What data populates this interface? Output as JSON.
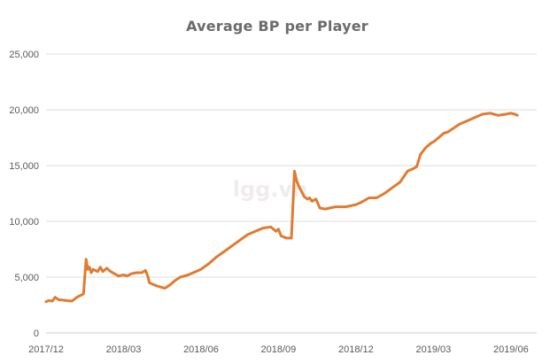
{
  "chart_data": {
    "type": "line",
    "title": "Average BP per Player",
    "xlabel": "",
    "ylabel": "",
    "ylim": [
      0,
      25000
    ],
    "yticks": [
      0,
      5000,
      10000,
      15000,
      20000,
      25000
    ],
    "ytick_labels": [
      "0",
      "5,000",
      "10,000",
      "15,000",
      "20,000",
      "25,000"
    ],
    "xlim": [
      0,
      19
    ],
    "xticks": [
      0,
      3,
      6,
      9,
      12,
      15,
      18
    ],
    "xtick_labels": [
      "2017/12",
      "2018/03",
      "2018/06",
      "2018/09",
      "2018/12",
      "2019/03",
      "2019/06"
    ],
    "grid": true,
    "watermark": "lgg.vn",
    "series": [
      {
        "name": "Average BP per Player",
        "color": "#e07b30",
        "x": [
          0,
          0.1,
          0.25,
          0.35,
          0.5,
          0.6,
          0.8,
          1.0,
          1.2,
          1.45,
          1.55,
          1.62,
          1.68,
          1.75,
          1.82,
          1.9,
          2.0,
          2.1,
          2.2,
          2.35,
          2.5,
          2.65,
          2.8,
          3.0,
          3.15,
          3.3,
          3.5,
          3.7,
          3.85,
          3.95,
          4.0,
          4.1,
          4.3,
          4.6,
          4.8,
          5.0,
          5.2,
          5.5,
          5.8,
          6.0,
          6.3,
          6.6,
          6.9,
          7.2,
          7.5,
          7.8,
          8.1,
          8.4,
          8.7,
          8.9,
          9.0,
          9.1,
          9.3,
          9.5,
          9.62,
          9.72,
          9.82,
          10.0,
          10.12,
          10.2,
          10.3,
          10.45,
          10.6,
          10.8,
          11.0,
          11.2,
          11.4,
          11.6,
          11.8,
          12.0,
          12.2,
          12.5,
          12.8,
          13.1,
          13.4,
          13.7,
          14.0,
          14.2,
          14.35,
          14.5,
          14.7,
          14.9,
          15.05,
          15.2,
          15.3,
          15.4,
          15.55,
          15.75,
          16.0,
          16.3,
          16.6,
          16.9,
          17.2,
          17.5,
          17.8,
          18.0,
          18.15,
          18.25
        ],
        "values": [
          2800,
          2900,
          2850,
          3200,
          2950,
          2950,
          2900,
          2850,
          3200,
          3500,
          6600,
          5700,
          5900,
          5400,
          5700,
          5600,
          5500,
          5900,
          5500,
          5800,
          5500,
          5300,
          5100,
          5200,
          5100,
          5300,
          5400,
          5400,
          5600,
          5000,
          4500,
          4400,
          4200,
          4000,
          4300,
          4700,
          5000,
          5200,
          5500,
          5700,
          6200,
          6800,
          7300,
          7800,
          8300,
          8800,
          9100,
          9400,
          9500,
          9100,
          9300,
          8700,
          8500,
          8500,
          14500,
          13500,
          13000,
          12200,
          12000,
          12100,
          11800,
          12000,
          11200,
          11100,
          11200,
          11300,
          11300,
          11300,
          11400,
          11500,
          11700,
          12100,
          12100,
          12500,
          13000,
          13500,
          14500,
          14700,
          14900,
          16000,
          16600,
          17000,
          17200,
          17500,
          17700,
          17900,
          18000,
          18300,
          18700,
          19000,
          19300,
          19600,
          19700,
          19500,
          19600,
          19700,
          19600,
          19500
        ]
      }
    ]
  }
}
